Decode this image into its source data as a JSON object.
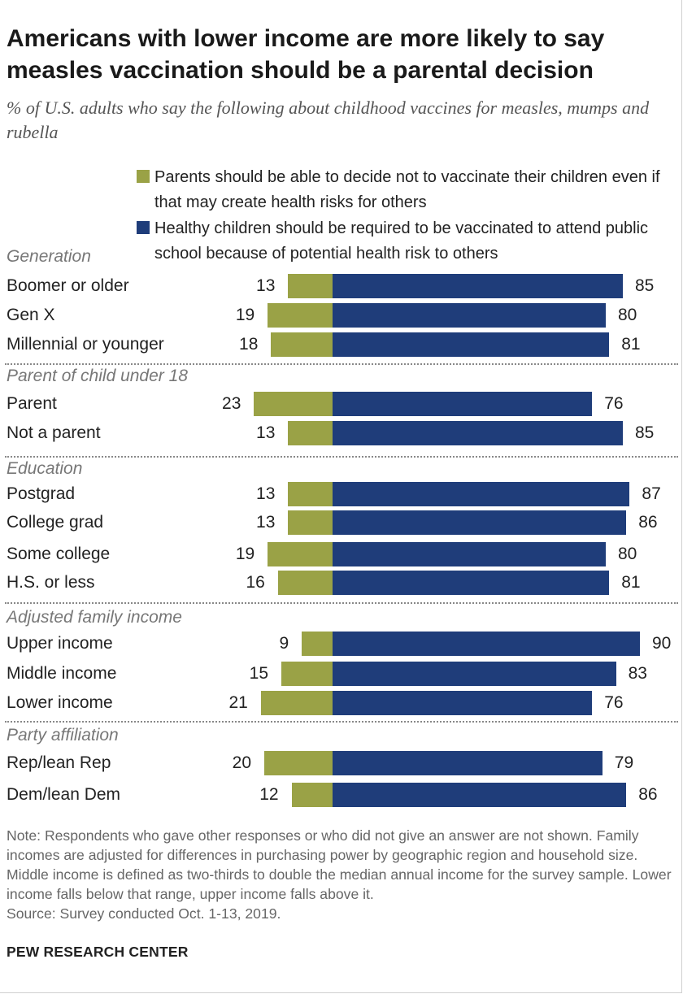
{
  "title": "Americans with lower income are more likely to say measles vaccination should be a parental decision",
  "subtitle": "% of U.S. adults who say the following about childhood vaccines for measles, mumps and rubella",
  "legend": {
    "green": "Parents should be able to decide not to vaccinate their children even if that may create health risks for others",
    "blue": "Healthy children should be required to be vaccinated to attend public school because of potential health risk to others"
  },
  "colors": {
    "green": "#9aa246",
    "blue": "#1f3d7a"
  },
  "chart_data": {
    "type": "bar",
    "orientation": "horizontal-diverging",
    "series": [
      {
        "name": "Parents should be able to decide not to vaccinate their children even if that may create health risks for others",
        "color": "#9aa246"
      },
      {
        "name": "Healthy children should be required to be vaccinated to attend public school because of potential health risk to others",
        "color": "#1f3d7a"
      }
    ],
    "groups": [
      {
        "label": "Generation",
        "rows": [
          {
            "label": "Boomer or older",
            "green": 13,
            "blue": 85
          },
          {
            "label": "Gen X",
            "green": 19,
            "blue": 80
          },
          {
            "label": "Millennial or younger",
            "green": 18,
            "blue": 81
          }
        ]
      },
      {
        "label": "Parent of child under 18",
        "rows": [
          {
            "label": "Parent",
            "green": 23,
            "blue": 76
          },
          {
            "label": "Not a parent",
            "green": 13,
            "blue": 85
          }
        ]
      },
      {
        "label": "Education",
        "rows": [
          {
            "label": "Postgrad",
            "green": 13,
            "blue": 87
          },
          {
            "label": "College grad",
            "green": 13,
            "blue": 86
          },
          {
            "label": "Some college",
            "green": 19,
            "blue": 80
          },
          {
            "label": "H.S. or less",
            "green": 16,
            "blue": 81
          }
        ]
      },
      {
        "label": "Adjusted family income",
        "rows": [
          {
            "label": "Upper income",
            "green": 9,
            "blue": 90
          },
          {
            "label": "Middle income",
            "green": 15,
            "blue": 83
          },
          {
            "label": "Lower income",
            "green": 21,
            "blue": 76
          }
        ]
      },
      {
        "label": "Party affiliation",
        "rows": [
          {
            "label": "Rep/lean Rep",
            "green": 20,
            "blue": 79
          },
          {
            "label": "Dem/lean Dem",
            "green": 12,
            "blue": 86
          }
        ]
      }
    ]
  },
  "note": "Note: Respondents who gave other responses or who did not give an answer are not shown. Family incomes are adjusted for differences in purchasing power by geographic region and household size. Middle income is defined as two-thirds to double the median annual income for the survey sample. Lower income falls below that range, upper income falls above it.",
  "source": "Source: Survey conducted Oct. 1-13, 2019.",
  "brand": "PEW RESEARCH CENTER"
}
